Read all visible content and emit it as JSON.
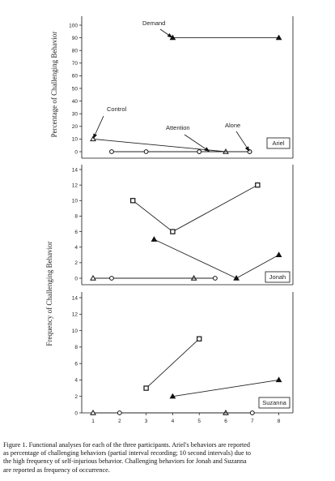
{
  "chart_data": [
    {
      "type": "line",
      "ylabel": "Percentage of Challenging Behavior",
      "legend_label": "Ariel",
      "ylim": [
        0,
        100
      ],
      "yticks": [
        0,
        10,
        20,
        30,
        40,
        50,
        60,
        70,
        80,
        90,
        100
      ],
      "conditions": [
        {
          "name": "Demand",
          "marker": "triangle-filled",
          "points": [
            [
              4,
              90
            ],
            [
              8,
              90
            ]
          ]
        },
        {
          "name": "Control",
          "marker": "triangle-open",
          "points": [
            [
              1,
              10
            ],
            [
              6,
              0
            ]
          ]
        },
        {
          "name": "Attention",
          "marker": "circle",
          "points": [
            [
              1.7,
              0
            ],
            [
              3,
              0
            ],
            [
              5,
              0
            ],
            [
              6.9,
              0
            ]
          ]
        },
        {
          "name": "Alone",
          "marker": "circle",
          "points": [
            [
              5,
              0
            ],
            [
              6.9,
              0
            ]
          ]
        }
      ],
      "annotations": [
        {
          "text": "Demand",
          "at": [
            3.3,
            100
          ]
        },
        {
          "text": "Control",
          "at": [
            1.4,
            27
          ]
        },
        {
          "text": "Attention",
          "at": [
            4.2,
            16
          ]
        },
        {
          "text": "Alone",
          "at": [
            6.0,
            18
          ]
        }
      ]
    },
    {
      "type": "line",
      "ylabel": "Frequency of Challenging Behavior",
      "legend_label": "Jonah",
      "ylim": [
        0,
        14
      ],
      "yticks": [
        0,
        2,
        4,
        6,
        8,
        10,
        12,
        14
      ],
      "conditions": [
        {
          "name": "Attention",
          "marker": "square-open",
          "points": [
            [
              2.5,
              10
            ],
            [
              4,
              6
            ],
            [
              7.2,
              12
            ]
          ]
        },
        {
          "name": "Demand",
          "marker": "triangle-filled",
          "points": [
            [
              3.3,
              5
            ],
            [
              6.4,
              0
            ],
            [
              8,
              3
            ]
          ]
        },
        {
          "name": "Control",
          "marker": "triangle-open",
          "points": [
            [
              1,
              0
            ],
            [
              4.8,
              0
            ]
          ]
        },
        {
          "name": "Alone",
          "marker": "circle",
          "points": [
            [
              1.7,
              0
            ],
            [
              5.6,
              0
            ]
          ]
        }
      ]
    },
    {
      "type": "line",
      "legend_label": "Suzanna",
      "ylim": [
        0,
        14
      ],
      "yticks": [
        0,
        2,
        4,
        6,
        8,
        10,
        12,
        14
      ],
      "xticks": [
        1,
        2,
        3,
        4,
        5,
        6,
        7,
        8
      ],
      "conditions": [
        {
          "name": "Attention",
          "marker": "square-open",
          "points": [
            [
              3,
              3
            ],
            [
              5,
              9
            ]
          ]
        },
        {
          "name": "Demand",
          "marker": "triangle-filled",
          "points": [
            [
              4,
              2
            ],
            [
              8,
              4
            ]
          ]
        },
        {
          "name": "Control",
          "marker": "triangle-open",
          "points": [
            [
              1,
              0
            ],
            [
              6,
              0
            ]
          ]
        },
        {
          "name": "Alone",
          "marker": "circle",
          "points": [
            [
              2,
              0
            ],
            [
              7,
              0
            ]
          ]
        }
      ]
    }
  ],
  "caption": {
    "lines": [
      "Figure 1. Functional analyses for each of the three participants. Ariel's behaviors are reported",
      "as percentage of challenging behaviors (partial interval recording; 10 second intervals) due to",
      "the high frequency of self-injurious behavior.  Challenging behaviors for Jonah and Suzanna",
      "are reported as frequency of occurrence."
    ]
  }
}
